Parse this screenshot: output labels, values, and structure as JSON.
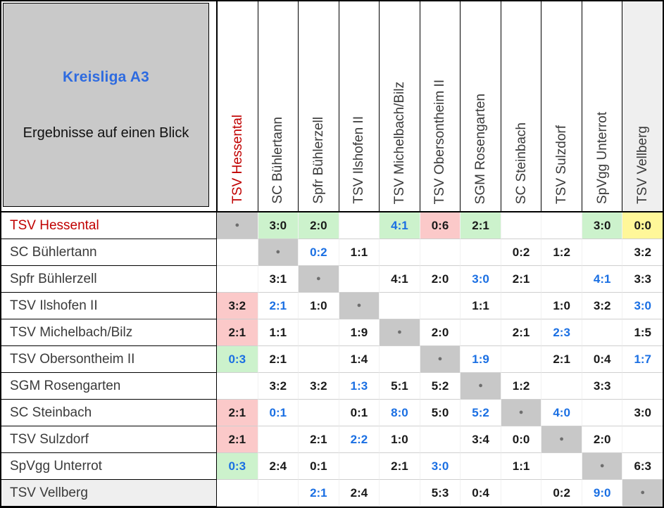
{
  "corner": {
    "title": "Kreisliga A3",
    "divider": "_________________________",
    "subtitle": "Ergebnisse auf einen Blick"
  },
  "colors": {
    "title_blue": "#2e6be0",
    "team_red": "#c00000",
    "score_blue": "#1a6fe3",
    "win_green": "#ccf2cc",
    "loss_red": "#fbc9c9",
    "draw_yellow": "#fff799",
    "diagonal_gray": "#c8c8c8",
    "header_gray": "#c9c9c9",
    "highlight_gray": "#efefef",
    "dot_gray": "#6e6e6e"
  },
  "diagonal_marker": "●",
  "teams": [
    {
      "name": "TSV Hessental",
      "text_color": "team_red"
    },
    {
      "name": "SC Bühlertann"
    },
    {
      "name": "Spfr Bühlerzell"
    },
    {
      "name": "TSV Ilshofen II"
    },
    {
      "name": "TSV Michelbach/Bilz"
    },
    {
      "name": "TSV Obersontheim II"
    },
    {
      "name": "SGM Rosengarten"
    },
    {
      "name": "SC Steinbach"
    },
    {
      "name": "TSV Sulzdorf"
    },
    {
      "name": "SpVgg Unterrot"
    },
    {
      "name": "TSV Vellberg",
      "highlight": true
    }
  ],
  "results_matrix": {
    "type": "table",
    "columns": [
      "TSV Hessental",
      "SC Bühlertann",
      "Spfr Bühlerzell",
      "TSV Ilshofen II",
      "TSV Michelbach/Bilz",
      "TSV Obersontheim II",
      "SGM Rosengarten",
      "SC Steinbach",
      "TSV Sulzdorf",
      "SpVgg Unterrot",
      "TSV Vellberg"
    ],
    "rows": [
      {
        "team": "TSV Hessental",
        "cells": [
          {
            "d": true
          },
          {
            "v": "3:0",
            "bg": "win_green"
          },
          {
            "v": "2:0",
            "bg": "win_green"
          },
          null,
          {
            "v": "4:1",
            "bg": "win_green",
            "fg": "score_blue"
          },
          {
            "v": "0:6",
            "bg": "loss_red"
          },
          {
            "v": "2:1",
            "bg": "win_green"
          },
          null,
          null,
          {
            "v": "3:0",
            "bg": "win_green"
          },
          {
            "v": "0:0",
            "bg": "draw_yellow"
          }
        ]
      },
      {
        "team": "SC Bühlertann",
        "cells": [
          null,
          {
            "d": true
          },
          {
            "v": "0:2",
            "fg": "score_blue"
          },
          {
            "v": "1:1"
          },
          null,
          null,
          null,
          {
            "v": "0:2"
          },
          {
            "v": "1:2"
          },
          null,
          {
            "v": "3:2"
          }
        ]
      },
      {
        "team": "Spfr Bühlerzell",
        "cells": [
          null,
          {
            "v": "3:1"
          },
          {
            "d": true
          },
          null,
          {
            "v": "4:1"
          },
          {
            "v": "2:0"
          },
          {
            "v": "3:0",
            "fg": "score_blue"
          },
          {
            "v": "2:1"
          },
          null,
          {
            "v": "4:1",
            "fg": "score_blue"
          },
          {
            "v": "3:3"
          }
        ]
      },
      {
        "team": "TSV Ilshofen II",
        "cells": [
          {
            "v": "3:2",
            "bg": "loss_red"
          },
          {
            "v": "2:1",
            "fg": "score_blue"
          },
          {
            "v": "1:0"
          },
          {
            "d": true
          },
          null,
          null,
          {
            "v": "1:1"
          },
          null,
          {
            "v": "1:0"
          },
          {
            "v": "3:2"
          },
          {
            "v": "3:0",
            "fg": "score_blue"
          }
        ]
      },
      {
        "team": "TSV Michelbach/Bilz",
        "cells": [
          {
            "v": "2:1",
            "bg": "loss_red"
          },
          {
            "v": "1:1"
          },
          null,
          {
            "v": "1:9"
          },
          {
            "d": true
          },
          {
            "v": "2:0"
          },
          null,
          {
            "v": "2:1"
          },
          {
            "v": "2:3",
            "fg": "score_blue"
          },
          null,
          {
            "v": "1:5"
          }
        ]
      },
      {
        "team": "TSV Obersontheim II",
        "cells": [
          {
            "v": "0:3",
            "bg": "win_green",
            "fg": "score_blue"
          },
          {
            "v": "2:1"
          },
          null,
          {
            "v": "1:4"
          },
          null,
          {
            "d": true
          },
          {
            "v": "1:9",
            "fg": "score_blue"
          },
          null,
          {
            "v": "2:1"
          },
          {
            "v": "0:4"
          },
          {
            "v": "1:7",
            "fg": "score_blue"
          }
        ]
      },
      {
        "team": "SGM Rosengarten",
        "cells": [
          null,
          {
            "v": "3:2"
          },
          {
            "v": "3:2"
          },
          {
            "v": "1:3",
            "fg": "score_blue"
          },
          {
            "v": "5:1"
          },
          {
            "v": "5:2"
          },
          {
            "d": true
          },
          {
            "v": "1:2"
          },
          null,
          {
            "v": "3:3"
          },
          null
        ]
      },
      {
        "team": "SC Steinbach",
        "cells": [
          {
            "v": "2:1",
            "bg": "loss_red"
          },
          {
            "v": "0:1",
            "fg": "score_blue"
          },
          null,
          {
            "v": "0:1"
          },
          {
            "v": "8:0",
            "fg": "score_blue"
          },
          {
            "v": "5:0"
          },
          {
            "v": "5:2",
            "fg": "score_blue"
          },
          {
            "d": true
          },
          {
            "v": "4:0",
            "fg": "score_blue"
          },
          null,
          {
            "v": "3:0"
          }
        ]
      },
      {
        "team": "TSV Sulzdorf",
        "cells": [
          {
            "v": "2:1",
            "bg": "loss_red"
          },
          null,
          {
            "v": "2:1"
          },
          {
            "v": "2:2",
            "fg": "score_blue"
          },
          {
            "v": "1:0"
          },
          null,
          {
            "v": "3:4"
          },
          {
            "v": "0:0"
          },
          {
            "d": true
          },
          {
            "v": "2:0"
          },
          null
        ]
      },
      {
        "team": "SpVgg Unterrot",
        "cells": [
          {
            "v": "0:3",
            "bg": "win_green",
            "fg": "score_blue"
          },
          {
            "v": "2:4"
          },
          {
            "v": "0:1"
          },
          null,
          {
            "v": "2:1"
          },
          {
            "v": "3:0",
            "fg": "score_blue"
          },
          null,
          {
            "v": "1:1"
          },
          null,
          {
            "d": true
          },
          {
            "v": "6:3"
          }
        ]
      },
      {
        "team": "TSV Vellberg",
        "cells": [
          null,
          null,
          {
            "v": "2:1",
            "fg": "score_blue"
          },
          {
            "v": "2:4"
          },
          null,
          {
            "v": "5:3"
          },
          {
            "v": "0:4"
          },
          null,
          {
            "v": "0:2"
          },
          {
            "v": "9:0",
            "fg": "score_blue"
          },
          {
            "d": true
          }
        ]
      }
    ]
  }
}
